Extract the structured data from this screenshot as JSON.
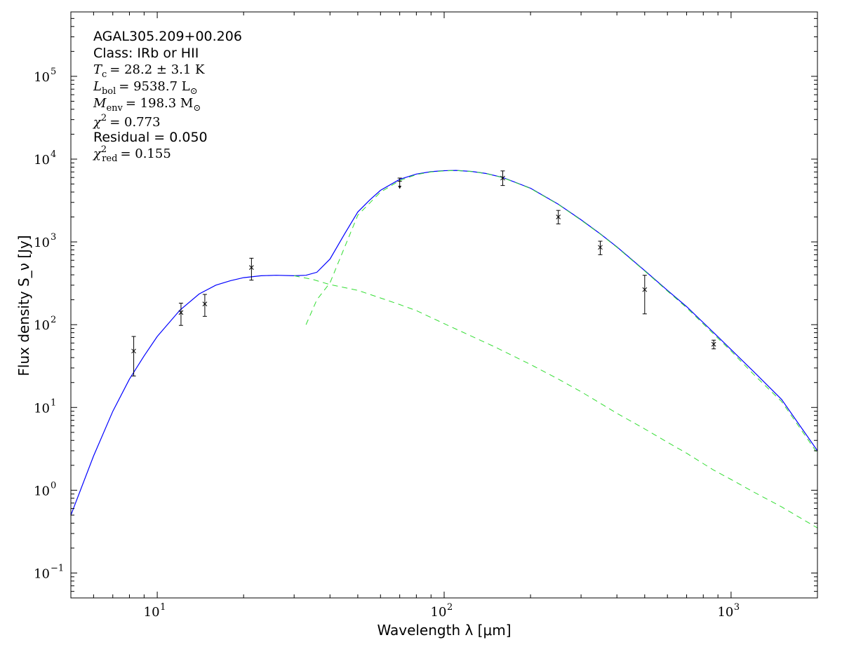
{
  "chart_data": {
    "type": "line",
    "title": "",
    "xlabel": "Wavelength λ [μm]",
    "ylabel": "Flux density S_ν [Jy]",
    "xscale": "log",
    "yscale": "log",
    "xlim": [
      5,
      2000
    ],
    "ylim": [
      0.05,
      600000
    ],
    "grid": false,
    "x_ticks": [
      {
        "value": 10,
        "base": "10",
        "exp": "1"
      },
      {
        "value": 100,
        "base": "10",
        "exp": "2"
      },
      {
        "value": 1000,
        "base": "10",
        "exp": "3"
      }
    ],
    "y_ticks": [
      {
        "value": 0.1,
        "base": "10",
        "exp": "−1"
      },
      {
        "value": 1,
        "base": "10",
        "exp": "0"
      },
      {
        "value": 10,
        "base": "10",
        "exp": "1"
      },
      {
        "value": 100,
        "base": "10",
        "exp": "2"
      },
      {
        "value": 1000,
        "base": "10",
        "exp": "3"
      },
      {
        "value": 10000,
        "base": "10",
        "exp": "4"
      },
      {
        "value": 100000,
        "base": "10",
        "exp": "5"
      }
    ],
    "annotations": {
      "source": "AGAL305.209+00.206",
      "class_line": "Class: IRb or HII",
      "tc": {
        "symbol": "T",
        "sub": "c",
        "value": "= 28.2 ± 3.1 K"
      },
      "lbol": {
        "symbol": "L",
        "sub": "bol",
        "value": "= 9538.7 L",
        "unit_sub": "⊙"
      },
      "menv": {
        "symbol": "M",
        "sub": "env",
        "value": "= 198.3 M",
        "unit_sub": "⊙"
      },
      "chi2": {
        "symbol": "χ",
        "sup": "2",
        "value": "= 0.773"
      },
      "residual": "Residual = 0.050",
      "chi2red": {
        "symbol": "χ",
        "sup": "2",
        "sub": "red",
        "value": "= 0.155"
      }
    },
    "observations": [
      {
        "x": 8.28,
        "y": 48,
        "yerr_low": 24,
        "yerr_high": 72,
        "marker": "x"
      },
      {
        "x": 12.1,
        "y": 140,
        "yerr_low": 98,
        "yerr_high": 182,
        "marker": "x"
      },
      {
        "x": 14.65,
        "y": 178,
        "yerr_low": 126,
        "yerr_high": 232,
        "marker": "x"
      },
      {
        "x": 21.3,
        "y": 490,
        "yerr_low": 345,
        "yerr_high": 635,
        "marker": "x"
      },
      {
        "x": 70,
        "y": 5400,
        "yerr_low": 4400,
        "yerr_high": 5900,
        "marker": "upper-limit"
      },
      {
        "x": 160,
        "y": 5900,
        "yerr_low": 4800,
        "yerr_high": 7200,
        "marker": "x"
      },
      {
        "x": 250,
        "y": 2000,
        "yerr_low": 1650,
        "yerr_high": 2400,
        "marker": "x"
      },
      {
        "x": 350,
        "y": 860,
        "yerr_low": 700,
        "yerr_high": 1020,
        "marker": "x"
      },
      {
        "x": 500,
        "y": 265,
        "yerr_low": 135,
        "yerr_high": 395,
        "marker": "x"
      },
      {
        "x": 870,
        "y": 58,
        "yerr_low": 51,
        "yerr_high": 65,
        "marker": "x"
      }
    ],
    "series": [
      {
        "color": "#0000ff",
        "style": "solid",
        "x": [
          5,
          6,
          7,
          8,
          9,
          10,
          12,
          14,
          16,
          18,
          20,
          23,
          26,
          30,
          33,
          36,
          40,
          45,
          50,
          55,
          60,
          70,
          80,
          90,
          100,
          110,
          125,
          140,
          160,
          200,
          250,
          300,
          350,
          400,
          500,
          600,
          700,
          870,
          1000,
          1200,
          1500,
          2000
        ],
        "y": [
          0.5,
          2.6,
          9,
          22,
          42,
          72,
          150,
          235,
          300,
          340,
          370,
          390,
          395,
          390,
          395,
          430,
          620,
          1250,
          2300,
          3200,
          4200,
          5700,
          6600,
          7050,
          7250,
          7300,
          7100,
          6700,
          6000,
          4450,
          2850,
          1850,
          1250,
          870,
          450,
          260,
          165,
          80,
          50,
          27,
          12.5,
          3
        ]
      },
      {
        "color": "#33dd33",
        "style": "dashed",
        "x": [
          33,
          36,
          40,
          50,
          60,
          70,
          80,
          90,
          100,
          110,
          125,
          140,
          160,
          200,
          250,
          300,
          350,
          400,
          500,
          600,
          700,
          870,
          1000,
          1200,
          1500,
          2000
        ],
        "y": [
          100,
          200,
          320,
          2100,
          4000,
          5500,
          6500,
          7000,
          7200,
          7280,
          7080,
          6680,
          5980,
          4420,
          2830,
          1830,
          1240,
          860,
          445,
          255,
          160,
          77,
          48,
          25,
          11.8,
          2.8
        ]
      },
      {
        "color": "#33dd33",
        "style": "dashed",
        "x": [
          30,
          35,
          40,
          50,
          60,
          70,
          80,
          100,
          120,
          150,
          200,
          250,
          300,
          400,
          500,
          600,
          700,
          870,
          1000,
          1200,
          1500,
          2000
        ],
        "y": [
          390,
          350,
          305,
          260,
          210,
          175,
          148,
          103,
          77,
          54,
          33,
          22,
          15.5,
          8.5,
          5.5,
          3.8,
          2.8,
          1.75,
          1.35,
          0.95,
          0.63,
          0.35
        ]
      }
    ]
  }
}
